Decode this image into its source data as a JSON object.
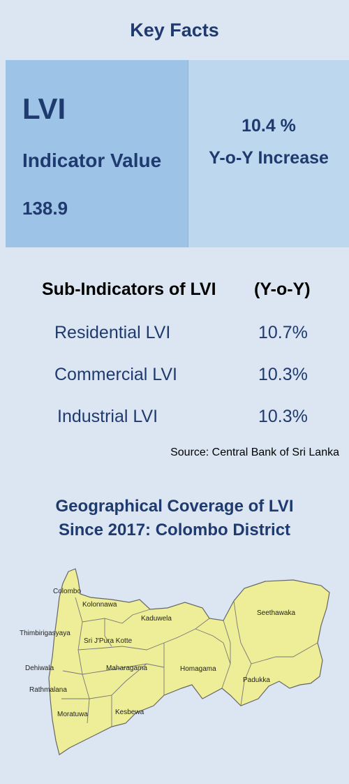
{
  "header": {
    "title": "Key Facts"
  },
  "lvi_box": {
    "name": "LVI",
    "indicator_label": "Indicator Value",
    "indicator_value": "138.9",
    "yoy_value": "10.4 %",
    "yoy_label": "Y-o-Y Increase"
  },
  "sub_indicators": {
    "heading": "Sub-Indicators of LVI",
    "column_heading": "(Y-o-Y)",
    "rows": [
      {
        "label": "Residential LVI",
        "value": "10.7%"
      },
      {
        "label": "Commercial LVI",
        "value": "10.3%"
      },
      {
        "label": "Industrial LVI",
        "value": "10.3%"
      }
    ],
    "source": "Source: Central Bank of Sri Lanka"
  },
  "geography": {
    "title_line1": "Geographical Coverage of LVI",
    "title_line2": "Since 2017: Colombo District",
    "regions": [
      "Colombo",
      "Kolonnawa",
      "Kaduwela",
      "Seethawaka",
      "Thimbirigasyaya",
      "Sri J'Pura Kotte",
      "Dehiwala",
      "Maharagama",
      "Homagama",
      "Padukka",
      "Rathmalana",
      "Kesbewa",
      "Moratuwa"
    ]
  },
  "colors": {
    "title": "#1f3a6e",
    "background": "#dce6f2",
    "box_dark": "#9dc3e6",
    "box_light": "#bdd7ee",
    "map_fill": "#eeee99"
  }
}
